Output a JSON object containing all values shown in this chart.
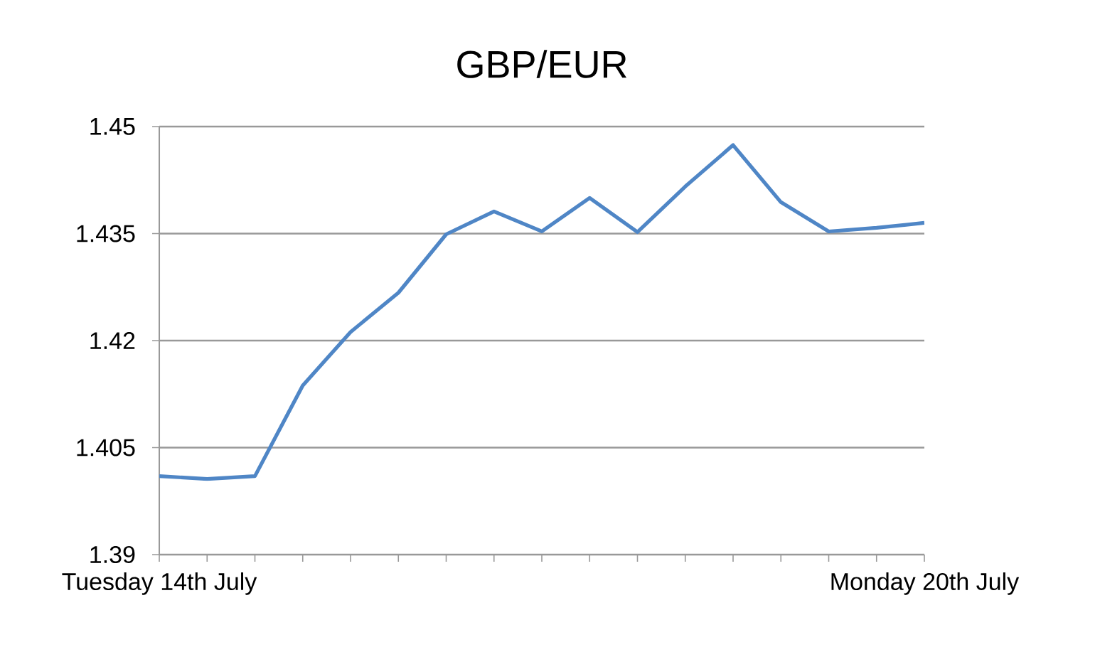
{
  "chart_data": {
    "type": "line",
    "title": "GBP/EUR",
    "categories": [
      "Tuesday 14th July",
      null,
      null,
      null,
      null,
      null,
      null,
      null,
      null,
      null,
      null,
      null,
      null,
      null,
      null,
      null,
      "Monday 20th July"
    ],
    "series": [
      {
        "color": "#4f86c6",
        "values": [
          1.401,
          1.4006,
          1.401,
          1.4137,
          1.4212,
          1.4267,
          1.4349,
          1.4381,
          1.4353,
          1.44,
          1.4352,
          1.4416,
          1.4474,
          1.4394,
          1.4353,
          1.4358,
          1.4365
        ]
      }
    ],
    "ylim": [
      1.39,
      1.45
    ],
    "yticks": [
      1.39,
      1.405,
      1.42,
      1.435,
      1.45
    ],
    "grid": "y",
    "marker": "none",
    "line_style": "solid"
  }
}
